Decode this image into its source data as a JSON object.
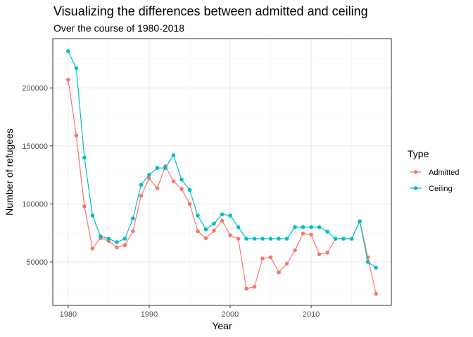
{
  "chart_data": {
    "type": "line",
    "title": "Visualizing the differences between admitted and ceiling",
    "subtitle": "Over the course of 1980-2018",
    "xlabel": "Year",
    "ylabel": "Number of refugees",
    "xlim": [
      1978.1,
      2019.9
    ],
    "ylim": [
      12500,
      242500
    ],
    "x_ticks": [
      1980,
      1990,
      2000,
      2010
    ],
    "y_ticks": [
      50000,
      100000,
      150000,
      200000
    ],
    "x_tick_labels": [
      "1980",
      "1990",
      "2000",
      "2010"
    ],
    "y_tick_labels": [
      "50000",
      "100000",
      "150000",
      "200000"
    ],
    "grid": true,
    "legend": {
      "title": "Type",
      "position": "right"
    },
    "x": [
      1980,
      1981,
      1982,
      1983,
      1984,
      1985,
      1986,
      1987,
      1988,
      1989,
      1990,
      1991,
      1992,
      1993,
      1994,
      1995,
      1996,
      1997,
      1998,
      1999,
      2000,
      2001,
      2002,
      2003,
      2004,
      2005,
      2006,
      2007,
      2008,
      2009,
      2010,
      2011,
      2012,
      2013,
      2014,
      2015,
      2016,
      2017,
      2018
    ],
    "series": [
      {
        "name": "Admitted",
        "color": "#F8766D",
        "values": [
          207000,
          159000,
          98000,
          61500,
          70500,
          68000,
          62500,
          64500,
          76500,
          107000,
          122000,
          113500,
          132500,
          119500,
          113000,
          100000,
          76500,
          70500,
          77000,
          85500,
          73000,
          70000,
          27000,
          28500,
          53000,
          54000,
          41000,
          48500,
          60000,
          74500,
          73500,
          56500,
          58000,
          70000,
          70000,
          70000,
          85000,
          54000,
          22500
        ]
      },
      {
        "name": "Ceiling",
        "color": "#00BFC4",
        "values": [
          231700,
          217000,
          140000,
          90000,
          72000,
          70000,
          67000,
          70000,
          87500,
          116500,
          125000,
          131000,
          131000,
          142000,
          121000,
          112000,
          90000,
          78000,
          83000,
          91000,
          90000,
          80000,
          70000,
          70000,
          70000,
          70000,
          70000,
          70000,
          80000,
          80000,
          80000,
          80000,
          76000,
          70000,
          70000,
          70000,
          85000,
          50000,
          45000
        ]
      }
    ]
  }
}
